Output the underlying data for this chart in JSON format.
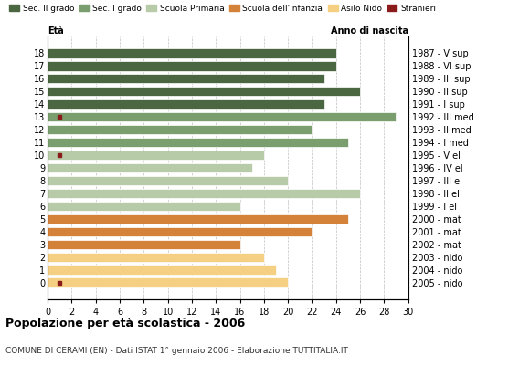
{
  "ages": [
    18,
    17,
    16,
    15,
    14,
    13,
    12,
    11,
    10,
    9,
    8,
    7,
    6,
    5,
    4,
    3,
    2,
    1,
    0
  ],
  "years": [
    "1987 - V sup",
    "1988 - VI sup",
    "1989 - III sup",
    "1990 - II sup",
    "1991 - I sup",
    "1992 - III med",
    "1993 - II med",
    "1994 - I med",
    "1995 - V el",
    "1996 - IV el",
    "1997 - III el",
    "1998 - II el",
    "1999 - I el",
    "2000 - mat",
    "2001 - mat",
    "2002 - mat",
    "2003 - nido",
    "2004 - nido",
    "2005 - nido"
  ],
  "values": [
    24,
    24,
    23,
    26,
    23,
    29,
    22,
    25,
    18,
    17,
    20,
    26,
    16,
    25,
    22,
    16,
    18,
    19,
    20
  ],
  "stranieri": [
    0,
    0,
    0,
    0,
    0,
    1,
    0,
    0,
    1,
    0,
    0,
    0,
    0,
    0,
    0,
    0,
    0,
    0,
    1
  ],
  "categories": {
    "sec_II": [
      18,
      17,
      16,
      15,
      14
    ],
    "sec_I": [
      13,
      12,
      11
    ],
    "primaria": [
      10,
      9,
      8,
      7,
      6
    ],
    "infanzia": [
      5,
      4,
      3
    ],
    "nido": [
      2,
      1,
      0
    ]
  },
  "colors": {
    "sec_II": "#4a6741",
    "sec_I": "#7a9e6e",
    "primaria": "#b8cba8",
    "infanzia": "#d4823a",
    "nido": "#f5d083",
    "stranieri": "#8b1a1a"
  },
  "legend_labels": [
    "Sec. II grado",
    "Sec. I grado",
    "Scuola Primaria",
    "Scuola dell'Infanzia",
    "Asilo Nido",
    "Stranieri"
  ],
  "title": "Popolazione per età scolastica - 2006",
  "subtitle": "COMUNE DI CERAMI (EN) - Dati ISTAT 1° gennaio 2006 - Elaborazione TUTTITALIA.IT",
  "xlabel_eta": "Età",
  "xlabel_anno": "Anno di nascita",
  "xlim": [
    0,
    30
  ],
  "xticks": [
    0,
    2,
    4,
    6,
    8,
    10,
    12,
    14,
    16,
    18,
    20,
    22,
    24,
    26,
    28,
    30
  ],
  "background_color": "#ffffff",
  "bar_height": 0.75
}
